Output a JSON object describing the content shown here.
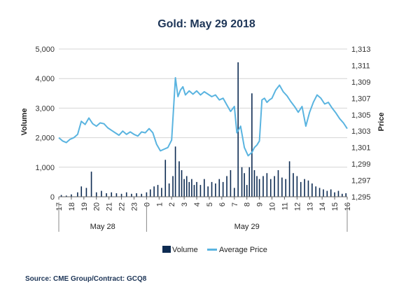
{
  "chart_data": {
    "type": "bar+line",
    "title": "Gold: May 29 2018",
    "ylabel_left": "Volume",
    "ylabel_right": "Price",
    "left_ticks": [
      "5,000",
      "4,000",
      "3,000",
      "2,000",
      "1,000",
      "0"
    ],
    "left_ylim": [
      0,
      5000
    ],
    "right_ticks": [
      "1,313",
      "1,311",
      "1,309",
      "1,307",
      "1,305",
      "1,303",
      "1,301",
      "1,299",
      "1,297",
      "1,295"
    ],
    "right_ylim": [
      1295,
      1313
    ],
    "x_ticks": [
      "17",
      "18",
      "19",
      "20",
      "21",
      "22",
      "23",
      "0",
      "1",
      "2",
      "3",
      "4",
      "5",
      "6",
      "7",
      "8",
      "9",
      "10",
      "11",
      "12",
      "13",
      "14",
      "15",
      "16"
    ],
    "x_range_hours": [
      0,
      23
    ],
    "day_labels": [
      {
        "label": "May 28",
        "from": 0,
        "to": 7
      },
      {
        "label": "May 29",
        "from": 7,
        "to": 23
      }
    ],
    "grid": "horizontal",
    "legend_position": "bottom",
    "series": [
      {
        "name": "Volume",
        "kind": "bar",
        "color": "#0d2b52",
        "x": [
          0.2,
          0.6,
          1.0,
          1.5,
          1.8,
          2.2,
          2.6,
          3.0,
          3.4,
          3.8,
          4.2,
          4.6,
          5.0,
          5.4,
          5.8,
          6.2,
          6.6,
          7.0,
          7.3,
          7.6,
          7.9,
          8.2,
          8.5,
          8.8,
          9.1,
          9.3,
          9.6,
          9.8,
          10.0,
          10.2,
          10.4,
          10.6,
          10.8,
          11.0,
          11.3,
          11.6,
          11.9,
          12.2,
          12.5,
          12.8,
          13.1,
          13.4,
          13.7,
          14.0,
          14.3,
          14.6,
          14.8,
          15.0,
          15.2,
          15.4,
          15.6,
          15.8,
          16.0,
          16.3,
          16.6,
          16.9,
          17.2,
          17.5,
          17.8,
          18.1,
          18.4,
          18.7,
          19.0,
          19.3,
          19.6,
          19.9,
          20.2,
          20.5,
          20.8,
          21.1,
          21.4,
          21.7,
          22.0,
          22.3,
          22.6,
          22.9
        ],
        "values": [
          60,
          40,
          80,
          150,
          350,
          300,
          850,
          150,
          200,
          120,
          150,
          120,
          100,
          150,
          100,
          120,
          100,
          150,
          250,
          350,
          400,
          300,
          1250,
          450,
          700,
          1700,
          1200,
          900,
          600,
          700,
          500,
          600,
          400,
          500,
          400,
          600,
          350,
          500,
          450,
          600,
          500,
          700,
          900,
          300,
          4550,
          1000,
          800,
          400,
          1000,
          3500,
          900,
          700,
          600,
          700,
          800,
          600,
          700,
          900,
          650,
          600,
          1200,
          800,
          700,
          500,
          600,
          550,
          450,
          350,
          300,
          250,
          200,
          250,
          150,
          200,
          100,
          120
        ]
      },
      {
        "name": "Average Price",
        "kind": "line",
        "color": "#5ab4e0",
        "x": [
          0,
          0.3,
          0.6,
          0.9,
          1.2,
          1.5,
          1.8,
          2.1,
          2.4,
          2.7,
          3.0,
          3.3,
          3.6,
          3.9,
          4.2,
          4.5,
          4.8,
          5.1,
          5.4,
          5.7,
          6.0,
          6.3,
          6.6,
          6.9,
          7.2,
          7.5,
          7.8,
          8.1,
          8.4,
          8.7,
          9.0,
          9.3,
          9.5,
          9.7,
          9.9,
          10.1,
          10.4,
          10.7,
          11.0,
          11.3,
          11.6,
          11.9,
          12.2,
          12.5,
          12.8,
          13.1,
          13.4,
          13.7,
          14.0,
          14.2,
          14.5,
          14.8,
          15.1,
          15.4,
          15.6,
          15.8,
          16.0,
          16.2,
          16.4,
          16.6,
          16.8,
          17.0,
          17.3,
          17.6,
          17.9,
          18.2,
          18.5,
          18.8,
          19.1,
          19.4,
          19.7,
          20.0,
          20.3,
          20.6,
          20.9,
          21.2,
          21.5,
          21.8,
          22.1,
          22.4,
          22.7,
          23.0
        ],
        "values": [
          1302.2,
          1301.8,
          1301.6,
          1302.0,
          1302.2,
          1302.6,
          1304.2,
          1303.8,
          1304.6,
          1303.9,
          1303.6,
          1304.0,
          1303.9,
          1303.4,
          1303.1,
          1302.8,
          1302.5,
          1303.0,
          1302.6,
          1302.9,
          1302.6,
          1302.4,
          1302.9,
          1302.8,
          1303.3,
          1302.8,
          1301.4,
          1300.6,
          1300.8,
          1301.0,
          1301.9,
          1309.5,
          1307.2,
          1308.0,
          1308.4,
          1307.4,
          1307.9,
          1307.5,
          1307.9,
          1307.4,
          1307.8,
          1307.5,
          1307.2,
          1307.4,
          1306.8,
          1307.0,
          1306.2,
          1305.4,
          1306.0,
          1302.8,
          1303.6,
          1301.0,
          1300.0,
          1300.4,
          1301.0,
          1301.3,
          1301.8,
          1306.8,
          1307.0,
          1306.5,
          1306.8,
          1307.0,
          1308.0,
          1308.6,
          1307.8,
          1307.3,
          1306.6,
          1306.0,
          1305.3,
          1306.0,
          1303.6,
          1305.3,
          1306.5,
          1307.4,
          1307.0,
          1306.3,
          1306.5,
          1305.8,
          1305.2,
          1304.5,
          1304.0,
          1303.3
        ]
      }
    ]
  },
  "source_text": "Source: CME Group/Contract: GCQ8"
}
